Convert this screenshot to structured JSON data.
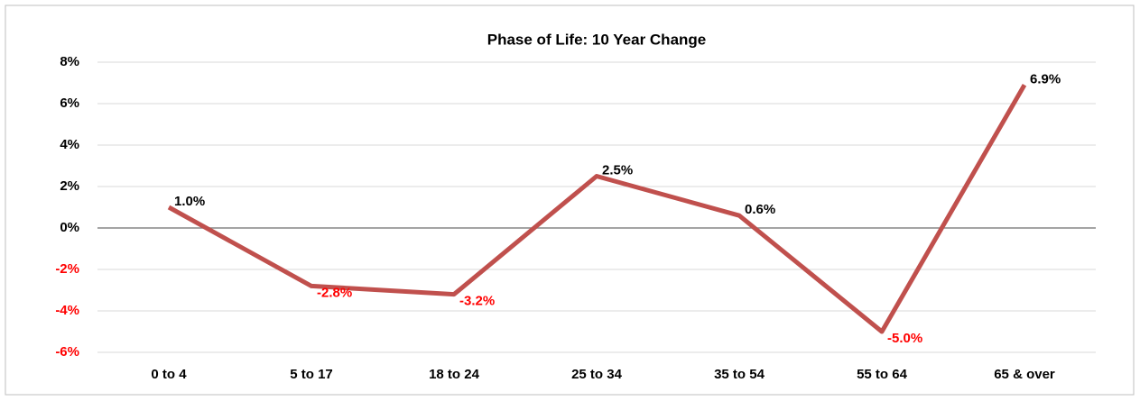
{
  "chart_data": {
    "type": "line",
    "title": "Phase of Life: 10 Year Change",
    "categories": [
      "0 to 4",
      "5 to 17",
      "18 to 24",
      "25 to 34",
      "35 to 54",
      "55 to 64",
      "65 & over"
    ],
    "series": [
      {
        "name": "10 Year Change",
        "color": "#c0504d",
        "values": [
          1.0,
          -2.8,
          -3.2,
          2.5,
          0.6,
          -5.0,
          6.9
        ],
        "value_labels": [
          "1.0%",
          "-2.8%",
          "-3.2%",
          "2.5%",
          "0.6%",
          "-5.0%",
          "6.9%"
        ]
      }
    ],
    "ylim": [
      -6,
      8
    ],
    "yticks": [
      {
        "value": -6,
        "label": "-6%"
      },
      {
        "value": -4,
        "label": "-4%"
      },
      {
        "value": -2,
        "label": "-2%"
      },
      {
        "value": 0,
        "label": "0%"
      },
      {
        "value": 2,
        "label": "2%"
      },
      {
        "value": 4,
        "label": "4%"
      },
      {
        "value": 6,
        "label": "6%"
      },
      {
        "value": 8,
        "label": "8%"
      }
    ],
    "grid": true,
    "legend": false,
    "negative_label_color": "#ff0000"
  }
}
